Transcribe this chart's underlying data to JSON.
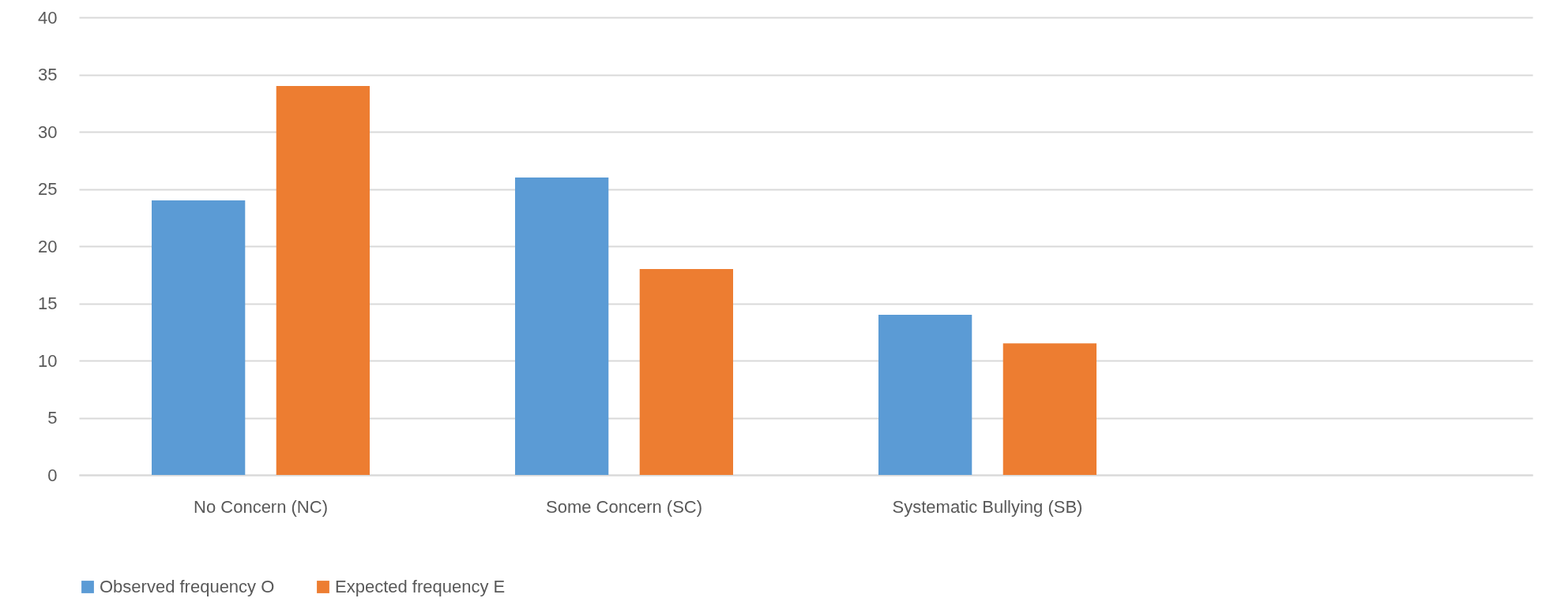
{
  "chart_data": {
    "type": "bar",
    "categories": [
      "No Concern (NC)",
      "Some Concern (SC)",
      "Systematic Bullying (SB)",
      null
    ],
    "series": [
      {
        "name": "Observed frequency O",
        "color": "#5b9bd5",
        "values": [
          24,
          26,
          14,
          null
        ]
      },
      {
        "name": "Expected frequency E",
        "color": "#ed7d31",
        "values": [
          34,
          18,
          11.5,
          null
        ]
      }
    ],
    "ylim": [
      0,
      40
    ],
    "yticks": [
      0,
      5,
      10,
      15,
      20,
      25,
      30,
      35,
      40
    ],
    "grid": "y",
    "legend": "bottom"
  }
}
